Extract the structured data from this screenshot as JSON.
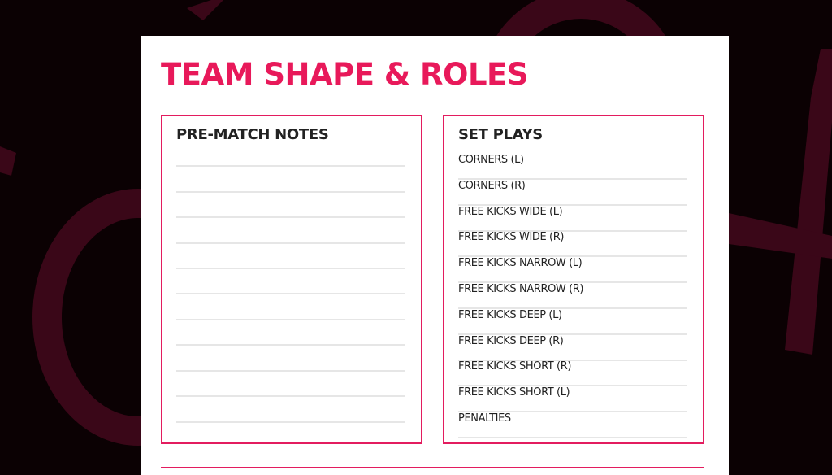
{
  "colors": {
    "accent": "#e8195a",
    "background": "#0b0103",
    "background_shapes": "#3a0718"
  },
  "page": {
    "title": "TEAM SHAPE & ROLES"
  },
  "pre_match_notes": {
    "heading": "PRE-MATCH NOTES",
    "line_count": 11
  },
  "set_plays": {
    "heading": "SET PLAYS",
    "items": [
      "CORNERS (L)",
      "CORNERS (R)",
      "FREE KICKS WIDE (L)",
      "FREE KICKS WIDE (R)",
      "FREE KICKS NARROW (L)",
      "FREE KICKS NARROW (R)",
      "FREE KICKS DEEP (L)",
      "FREE KICKS DEEP (R)",
      "FREE KICKS SHORT (R)",
      "FREE KICKS SHORT (L)",
      "PENALTIES"
    ]
  }
}
